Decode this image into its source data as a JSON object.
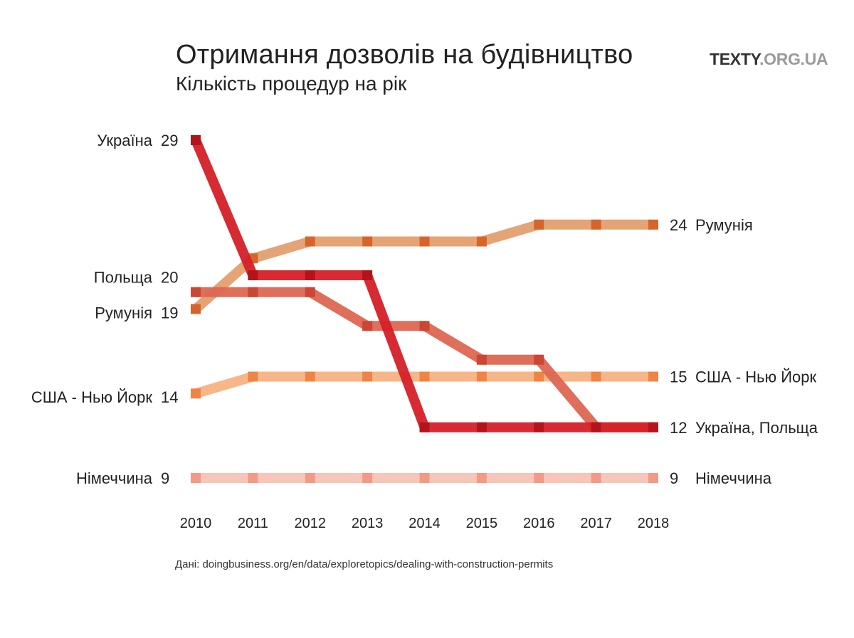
{
  "header": {
    "title": "Отримання дозволів на будівництво",
    "subtitle": "Кількість процедур на рік",
    "brand_main": "TEXTY",
    "brand_domain": ".ORG.UA"
  },
  "footer": {
    "source": "Дані: doingbusiness.org/en/data/exploretopics/dealing-with-construction-permits"
  },
  "chart_data": {
    "type": "line",
    "title": "Отримання дозволів на будівництво",
    "subtitle": "Кількість процедур на рік",
    "x": [
      2010,
      2011,
      2012,
      2013,
      2014,
      2015,
      2016,
      2017,
      2018
    ],
    "ylim": [
      9,
      29
    ],
    "grid": false,
    "legend": "direct labels at line ends",
    "series": [
      {
        "name": "Німеччина",
        "color": "#f7c3b6",
        "marker": "#f39a87",
        "values": [
          9,
          9,
          9,
          9,
          9,
          9,
          9,
          9,
          9
        ]
      },
      {
        "name": "США - Нью Йорк",
        "color": "#f7b282",
        "marker": "#ef8444",
        "values": [
          14,
          15,
          15,
          15,
          15,
          15,
          15,
          15,
          15
        ]
      },
      {
        "name": "Румунія",
        "color": "#e39f6e",
        "marker": "#d7652b",
        "values": [
          19,
          22,
          23,
          23,
          23,
          23,
          24,
          24,
          24
        ]
      },
      {
        "name": "Польща",
        "color": "#dd6652",
        "marker": "#cc4634",
        "values": [
          20,
          20,
          20,
          18,
          18,
          16,
          16,
          12,
          12
        ]
      },
      {
        "name": "Україна",
        "color": "#d42027",
        "marker": "#b3141c",
        "values": [
          29,
          21,
          21,
          21,
          12,
          12,
          12,
          12,
          12
        ]
      }
    ],
    "left_labels": [
      {
        "name": "Україна",
        "value": "29"
      },
      {
        "name": "Польща",
        "value": "20"
      },
      {
        "name": "Румунія",
        "value": "19"
      },
      {
        "name": "США - Нью Йорк",
        "value": "14"
      },
      {
        "name": "Німеччина",
        "value": "9"
      }
    ],
    "right_labels": [
      {
        "name": "Румунія",
        "value": "24"
      },
      {
        "name": "США - Нью Йорк",
        "value": "15"
      },
      {
        "name": "Україна, Польща",
        "value": "12"
      },
      {
        "name": "Німеччина",
        "value": "9"
      }
    ]
  }
}
